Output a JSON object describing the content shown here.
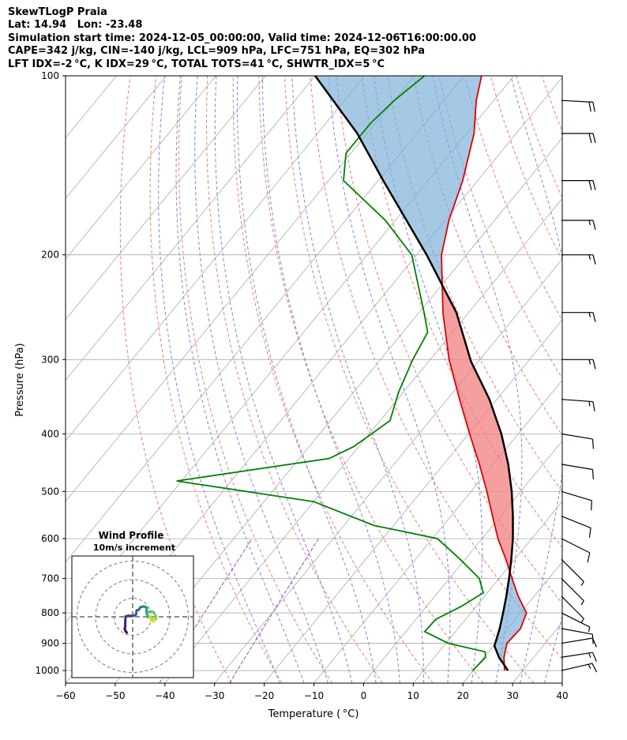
{
  "header": {
    "line1": "SkewTLogP Praia",
    "line2": "Lat: 14.94   Lon: -23.48",
    "line3": "Simulation start time: 2024-12-05_00:00:00, Valid time: 2024-12-06T16:00:00.00",
    "line4": "CAPE=342 j/kg, CIN=-140 j/kg, LCL=909 hPa, LFC=751 hPa, EQ=302 hPa",
    "line5": "LFT IDX=-2 °C, K IDX=29 °C, TOTAL TOTS=41 °C, SHWTR_IDX=5 °C"
  },
  "chart_data": {
    "type": "skewt",
    "xlabel": "Temperature ( °C)",
    "ylabel": "Pressure (hPa)",
    "xlim": [
      -60,
      40
    ],
    "ylim": [
      1050,
      100
    ],
    "xticks": [
      -60,
      -50,
      -40,
      -30,
      -20,
      -10,
      0,
      10,
      20,
      30,
      40
    ],
    "xtick_labels": [
      "−60",
      "−50",
      "−40",
      "−30",
      "−20",
      "−10",
      "0",
      "10",
      "20",
      "30",
      "40"
    ],
    "yticks": [
      1000,
      900,
      800,
      700,
      600,
      500,
      400,
      300,
      200,
      100
    ],
    "ytick_labels": [
      "1000",
      "900",
      "800",
      "700",
      "600",
      "500",
      "400",
      "300",
      "200",
      "100"
    ],
    "colors": {
      "temperature": "#e00000",
      "dewpoint": "#008000",
      "parcel": "#000000",
      "cape_fill": "#f08080",
      "cin_fill": "#7fb0d8",
      "isotherm": "#aaaaaa",
      "dry_adiabat": "#f06060",
      "moist_adiabat": "#6a6af0",
      "mixing_ratio": "#9050c0"
    },
    "temperature": [
      {
        "p": 1000,
        "t": 26.3
      },
      {
        "p": 950,
        "t": 24.0
      },
      {
        "p": 900,
        "t": 22.3
      },
      {
        "p": 850,
        "t": 22.6
      },
      {
        "p": 800,
        "t": 21.2
      },
      {
        "p": 750,
        "t": 16.8
      },
      {
        "p": 700,
        "t": 12.6
      },
      {
        "p": 650,
        "t": 8.2
      },
      {
        "p": 600,
        "t": 3.2
      },
      {
        "p": 550,
        "t": -1.6
      },
      {
        "p": 500,
        "t": -6.8
      },
      {
        "p": 450,
        "t": -12.8
      },
      {
        "p": 400,
        "t": -19.8
      },
      {
        "p": 350,
        "t": -27.5
      },
      {
        "p": 300,
        "t": -36.2
      },
      {
        "p": 250,
        "t": -45.2
      },
      {
        "p": 200,
        "t": -55.0
      },
      {
        "p": 175,
        "t": -59.2
      },
      {
        "p": 150,
        "t": -63.0
      },
      {
        "p": 125,
        "t": -68.5
      },
      {
        "p": 110,
        "t": -73.5
      },
      {
        "p": 100,
        "t": -76.5
      }
    ],
    "dewpoint": [
      {
        "p": 1000,
        "t": 19.9
      },
      {
        "p": 950,
        "t": 20.3
      },
      {
        "p": 930,
        "t": 19.3
      },
      {
        "p": 900,
        "t": 10.5
      },
      {
        "p": 860,
        "t": 3.8
      },
      {
        "p": 820,
        "t": 4.0
      },
      {
        "p": 780,
        "t": 7.0
      },
      {
        "p": 740,
        "t": 9.2
      },
      {
        "p": 700,
        "t": 6.0
      },
      {
        "p": 650,
        "t": -1.0
      },
      {
        "p": 600,
        "t": -9.0
      },
      {
        "p": 570,
        "t": -24.0
      },
      {
        "p": 520,
        "t": -40.0
      },
      {
        "p": 480,
        "t": -71.0
      },
      {
        "p": 440,
        "t": -44.0
      },
      {
        "p": 420,
        "t": -41.0
      },
      {
        "p": 380,
        "t": -38.0
      },
      {
        "p": 340,
        "t": -41.0
      },
      {
        "p": 300,
        "t": -43.5
      },
      {
        "p": 270,
        "t": -45.0
      },
      {
        "p": 250,
        "t": -49.0
      },
      {
        "p": 200,
        "t": -61.0
      },
      {
        "p": 175,
        "t": -72.0
      },
      {
        "p": 150,
        "t": -87.0
      },
      {
        "p": 135,
        "t": -91.0
      },
      {
        "p": 120,
        "t": -91.0
      },
      {
        "p": 110,
        "t": -90.0
      },
      {
        "p": 100,
        "t": -88.0
      }
    ],
    "parcel": [
      {
        "p": 1000,
        "t": 27.0
      },
      {
        "p": 950,
        "t": 23.0
      },
      {
        "p": 909,
        "t": 20.2
      },
      {
        "p": 850,
        "t": 18.4
      },
      {
        "p": 800,
        "t": 16.5
      },
      {
        "p": 750,
        "t": 14.4
      },
      {
        "p": 700,
        "t": 12.0
      },
      {
        "p": 650,
        "t": 9.3
      },
      {
        "p": 600,
        "t": 6.2
      },
      {
        "p": 550,
        "t": 2.5
      },
      {
        "p": 500,
        "t": -1.8
      },
      {
        "p": 450,
        "t": -7.0
      },
      {
        "p": 400,
        "t": -13.4
      },
      {
        "p": 350,
        "t": -21.5
      },
      {
        "p": 302,
        "t": -31.5
      },
      {
        "p": 250,
        "t": -42.5
      },
      {
        "p": 200,
        "t": -58.0
      },
      {
        "p": 150,
        "t": -79.0
      },
      {
        "p": 125,
        "t": -92.0
      },
      {
        "p": 100,
        "t": -110.0
      }
    ],
    "wind_barbs": [
      {
        "p": 1000,
        "u": -13,
        "v": -3
      },
      {
        "p": 950,
        "u": -13,
        "v": -2
      },
      {
        "p": 900,
        "u": -12,
        "v": -2
      },
      {
        "p": 850,
        "u": -11,
        "v": 2
      },
      {
        "p": 800,
        "u": -6,
        "v": 3
      },
      {
        "p": 750,
        "u": -5,
        "v": 5
      },
      {
        "p": 700,
        "u": -5,
        "v": 5
      },
      {
        "p": 650,
        "u": -5,
        "v": 5
      },
      {
        "p": 600,
        "u": -8,
        "v": 4
      },
      {
        "p": 550,
        "u": -10,
        "v": 4
      },
      {
        "p": 500,
        "u": -10,
        "v": 3
      },
      {
        "p": 450,
        "u": -12,
        "v": 2
      },
      {
        "p": 400,
        "u": -12,
        "v": 2
      },
      {
        "p": 350,
        "u": -14,
        "v": 1
      },
      {
        "p": 300,
        "u": -15,
        "v": 0
      },
      {
        "p": 250,
        "u": -16,
        "v": 0
      },
      {
        "p": 200,
        "u": -17,
        "v": 0
      },
      {
        "p": 175,
        "u": -17,
        "v": 0
      },
      {
        "p": 150,
        "u": -18,
        "v": 0
      },
      {
        "p": 125,
        "u": -19,
        "v": 0
      },
      {
        "p": 110,
        "u": -18,
        "v": 1
      }
    ],
    "hodograph": {
      "title": "Wind Profile",
      "subtitle": "10m/s increment",
      "rings": [
        10,
        20,
        30
      ],
      "points": [
        {
          "u": -3.2,
          "v": -8.5
        },
        {
          "u": -3.9,
          "v": -7.6
        },
        {
          "u": -4.3,
          "v": -6.4
        },
        {
          "u": -4.0,
          "v": -5.2
        },
        {
          "u": -4.0,
          "v": -2.8
        },
        {
          "u": -3.8,
          "v": 0.2
        },
        {
          "u": -2.4,
          "v": 0.6
        },
        {
          "u": 0.2,
          "v": 0.5
        },
        {
          "u": 1.2,
          "v": 0.9
        },
        {
          "u": 1.8,
          "v": 1.2
        },
        {
          "u": 2.2,
          "v": 3.5
        },
        {
          "u": 3.3,
          "v": 3.8
        },
        {
          "u": 4.2,
          "v": 5.2
        },
        {
          "u": 5.3,
          "v": 5.4
        },
        {
          "u": 6.0,
          "v": 5.6
        },
        {
          "u": 7.2,
          "v": 5.2
        },
        {
          "u": 7.6,
          "v": 4.6
        },
        {
          "u": 7.4,
          "v": 2.8
        },
        {
          "u": 7.9,
          "v": 1.1
        },
        {
          "u": 8.2,
          "v": -0.2
        },
        {
          "u": 7.6,
          "v": 1.5
        },
        {
          "u": 8.4,
          "v": 2.4
        },
        {
          "u": 9.0,
          "v": 2.8
        },
        {
          "u": 10.2,
          "v": 2.9
        },
        {
          "u": 11.3,
          "v": 2.5
        },
        {
          "u": 12.4,
          "v": 0.5
        },
        {
          "u": 12.7,
          "v": -1.0
        },
        {
          "u": 11.8,
          "v": -1.8
        },
        {
          "u": 10.5,
          "v": -1.2
        },
        {
          "u": 9.6,
          "v": 0.2
        },
        {
          "u": 9.9,
          "v": -1.8
        },
        {
          "u": 11.0,
          "v": -2.5
        },
        {
          "u": 11.9,
          "v": -2.0
        }
      ]
    }
  }
}
